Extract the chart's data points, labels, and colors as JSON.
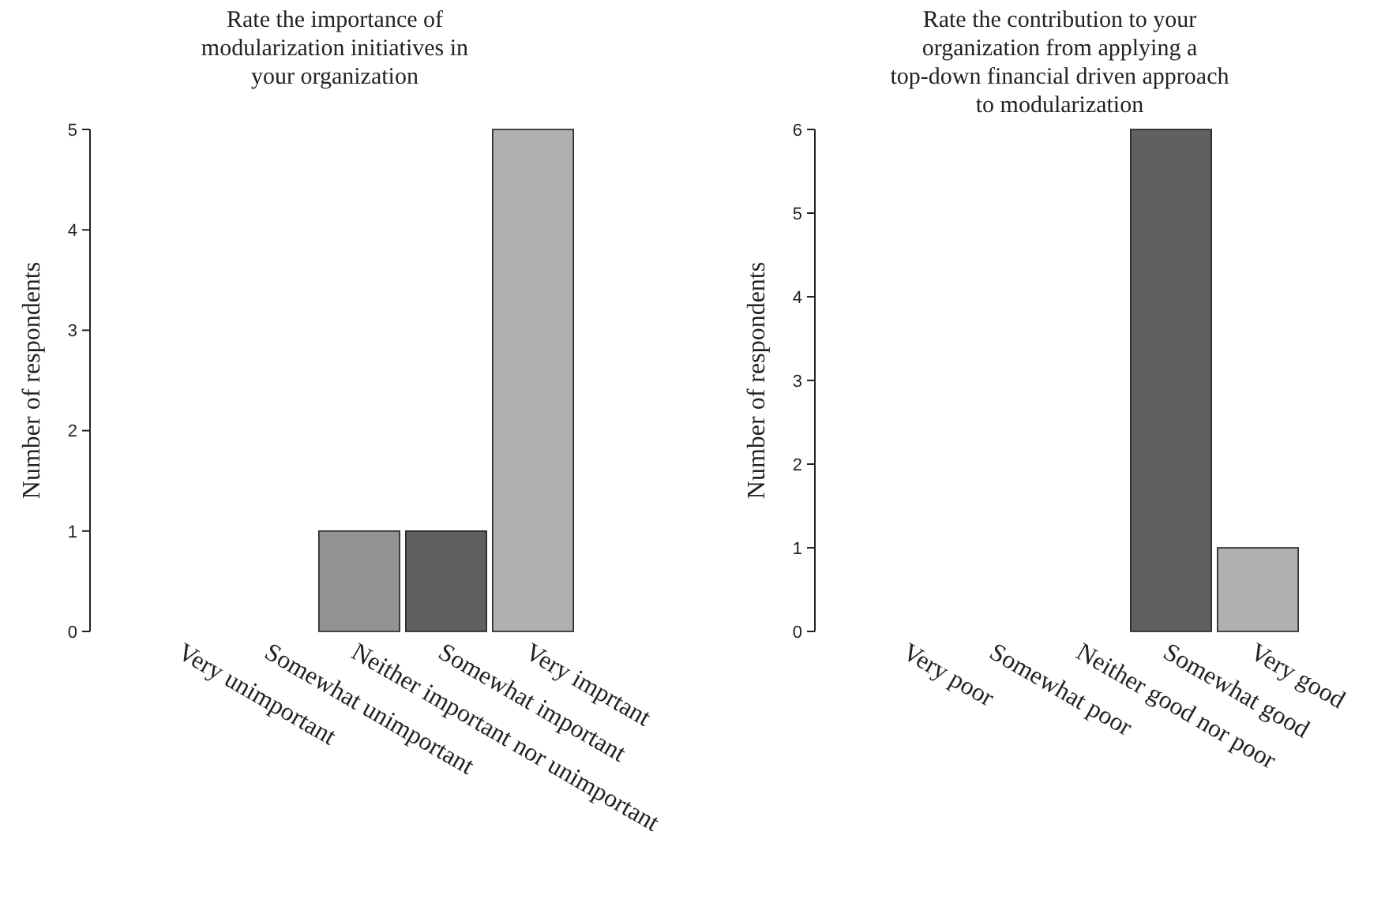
{
  "chart_data": [
    {
      "type": "bar",
      "title": "Rate the importance of\nmodularization initiatives in\nyour organization",
      "ylabel": "Number of respondents",
      "categories": [
        "Very unimportant",
        "Somewhat unimportant",
        "Neither important nor unimportant",
        "Somewhat important",
        "Very imprtant"
      ],
      "values": [
        0,
        0,
        1,
        1,
        5
      ],
      "colors": [
        "#939393",
        "#939393",
        "#939393",
        "#606060",
        "#b0b0b0"
      ],
      "ylim": [
        0,
        5
      ],
      "yticks": [
        0,
        1,
        2,
        3,
        4,
        5
      ],
      "grid": false
    },
    {
      "type": "bar",
      "title": "Rate the contribution to your\norganization from applying a\ntop-down financial driven approach\nto modularization",
      "ylabel": "Number of respondents",
      "categories": [
        "Very poor",
        "Somewhat poor",
        "Neither good nor poor",
        "Somewhat good",
        "Very good"
      ],
      "values": [
        0,
        0,
        0,
        6,
        1
      ],
      "colors": [
        "#939393",
        "#939393",
        "#939393",
        "#606060",
        "#b0b0b0"
      ],
      "ylim": [
        0,
        6
      ],
      "yticks": [
        0,
        1,
        2,
        3,
        4,
        5,
        6
      ],
      "grid": false
    }
  ]
}
